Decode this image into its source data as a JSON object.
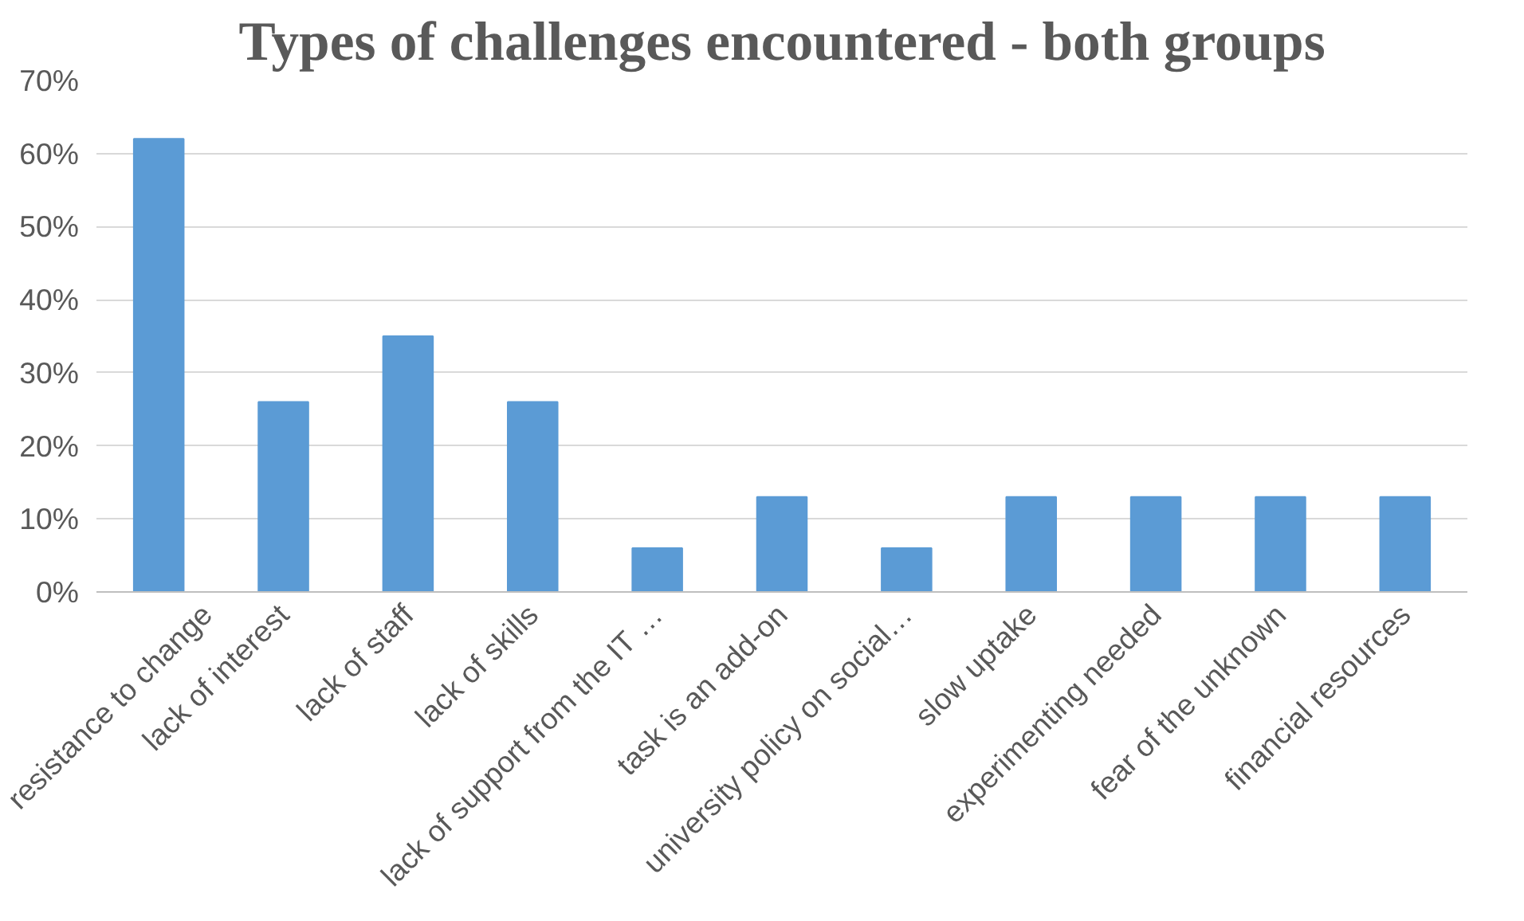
{
  "chart_data": {
    "type": "bar",
    "title": "Types of challenges encountered - both groups",
    "categories": [
      "resistance to change",
      "lack of interest",
      "lack of staff",
      "lack of skills",
      "lack of support from the IT …",
      "task is an add-on",
      "university policy on social…",
      "slow uptake",
      "experimenting needed",
      "fear of the unknown",
      "financial resources"
    ],
    "values": [
      0.62,
      0.26,
      0.35,
      0.26,
      0.06,
      0.13,
      0.06,
      0.13,
      0.13,
      0.13,
      0.13
    ],
    "color": "#5b9bd5",
    "ylim": [
      0,
      0.7
    ],
    "yticks": [
      {
        "value": 0,
        "label": "0%"
      },
      {
        "value": 0.1,
        "label": "10%"
      },
      {
        "value": 0.2,
        "label": "20%"
      },
      {
        "value": 0.3,
        "label": "30%"
      },
      {
        "value": 0.4,
        "label": "40%"
      },
      {
        "value": 0.5,
        "label": "50%"
      },
      {
        "value": 0.6,
        "label": "60%"
      },
      {
        "value": 0.7,
        "label": "70%"
      }
    ],
    "grid": "y"
  }
}
